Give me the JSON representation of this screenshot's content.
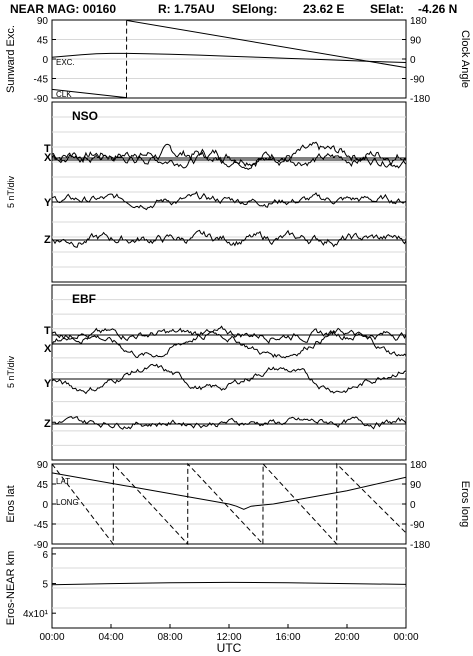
{
  "header": {
    "mission": "NEAR MAG: 00160",
    "range": "R: 1.75AU",
    "selong_label": "SElong:",
    "selong_value": "23.62 E",
    "selat_label": "SElat:",
    "selat_value": "-4.26 N"
  },
  "x_axis": {
    "label": "UTC",
    "range_hours": [
      0,
      24
    ],
    "ticks": [
      "00:00",
      "04:00",
      "08:00",
      "12:00",
      "16:00",
      "20:00",
      "00:00"
    ]
  },
  "chart_data": [
    {
      "type": "line",
      "panel": "sunward",
      "left_axis_label": "Sunward Exc.",
      "right_axis_label": "Clock Angle",
      "left_ticks": [
        "90",
        "45",
        "0",
        "-45",
        "-90"
      ],
      "right_ticks": [
        "180",
        "90",
        "0",
        "-90",
        "-180"
      ],
      "ylim_left": [
        -90,
        90
      ],
      "ylim_right": [
        -180,
        180
      ],
      "series": [
        {
          "name": "EXC.",
          "x": [
            0,
            1,
            2,
            3,
            4,
            5,
            6,
            8,
            10,
            12,
            14,
            16,
            18,
            20,
            22,
            24
          ],
          "y": [
            4,
            7,
            10,
            12,
            13,
            13,
            12.5,
            11,
            9,
            6.5,
            4,
            1.5,
            -1,
            -3.5,
            -6,
            -8
          ]
        },
        {
          "name": "CLK",
          "x": [
            0,
            5.05,
            5.06,
            24
          ],
          "y": [
            -140,
            -178,
            178,
            -40
          ]
        }
      ]
    },
    {
      "type": "line",
      "panel": "NSO",
      "title": "NSO",
      "axis_label": "5 nT/div",
      "series": [
        {
          "name": "T",
          "baseline": "T",
          "offset": 0.8,
          "noise": 1.0
        },
        {
          "name": "X",
          "baseline": "X",
          "offset": 0.2,
          "noise": 0.8
        },
        {
          "name": "Y",
          "baseline": "Y",
          "offset": 0.4,
          "noise": 0.7
        },
        {
          "name": "Z",
          "baseline": "Z",
          "offset": 0.2,
          "noise": 0.8
        }
      ]
    },
    {
      "type": "line",
      "panel": "EBF",
      "title": "EBF",
      "axis_label": "5 nT/div",
      "series": [
        {
          "name": "T",
          "baseline": "T",
          "offset": 0.2,
          "noise": 0.7
        },
        {
          "name": "X",
          "baseline": "X",
          "offset": 0,
          "noise": 0.6,
          "wave": 2.2
        },
        {
          "name": "Y",
          "baseline": "Y",
          "offset": 0,
          "noise": 0.6,
          "wave": -2.0
        },
        {
          "name": "Z",
          "baseline": "Z",
          "offset": 0.3,
          "noise": 0.6
        }
      ]
    },
    {
      "type": "line",
      "panel": "eros",
      "left_axis_label": "Eros lat",
      "right_axis_label": "Eros long",
      "left_ticks": [
        "90",
        "45",
        "0",
        "-45",
        "-90"
      ],
      "right_ticks": [
        "180",
        "90",
        "0",
        "-90",
        "-180"
      ],
      "ylim_left": [
        -90,
        90
      ],
      "ylim_right": [
        -180,
        180
      ],
      "series": [
        {
          "name": "LAT",
          "x": [
            0,
            6,
            12,
            12.5,
            13,
            13.5,
            15,
            20,
            24
          ],
          "y": [
            70,
            35,
            0,
            -5,
            -12,
            -5,
            0,
            30,
            60
          ]
        },
        {
          "name": "LONG",
          "x": [
            0,
            4.15,
            4.16,
            9.2,
            9.21,
            14.3,
            14.31,
            19.3,
            19.31,
            24
          ],
          "y": [
            180,
            -180,
            180,
            -180,
            180,
            -180,
            180,
            -180,
            180,
            -130
          ]
        }
      ]
    },
    {
      "type": "line",
      "panel": "range",
      "left_axis_label": "Eros-NEAR km",
      "left_ticks": [
        "6",
        "5",
        "4x10¹"
      ],
      "ylim": [
        35,
        62
      ],
      "series": [
        {
          "name": "range",
          "x": [
            0,
            4,
            8,
            12,
            16,
            20,
            24
          ],
          "y": [
            49.6,
            50.0,
            50.3,
            50.4,
            50.3,
            50.0,
            49.7
          ]
        }
      ]
    }
  ]
}
